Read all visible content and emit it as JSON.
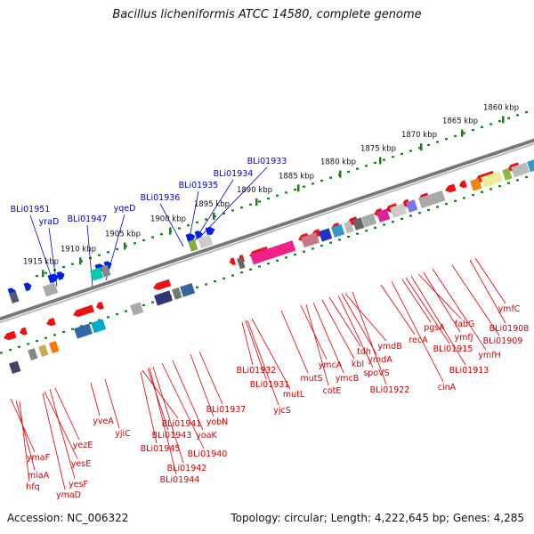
{
  "title": "Bacillus licheniformis ATCC 14580, complete genome",
  "footer": {
    "accession": "Accession: NC_006322",
    "stats": "Topology: circular; Length: 4,222,645 bp; Genes: 4,285"
  },
  "ticks": [
    "1860 kbp",
    "1865 kbp",
    "1870 kbp",
    "1875 kbp",
    "1880 kbp",
    "1885 kbp",
    "1890 kbp",
    "1895 kbp",
    "1900 kbp",
    "1905 kbp",
    "1910 kbp",
    "1915 kbp"
  ],
  "genes_top": [
    "BLi01951",
    "yraD",
    "BLi01947",
    "yqeD",
    "BLi01936",
    "BLi01935",
    "BLi01934",
    "BLi01933"
  ],
  "genes_bottom": [
    "ymaF",
    "miaA",
    "hfq",
    "yesE",
    "yesF",
    "yezE",
    "ymaD",
    "yveA",
    "yjiC",
    "BLi01941",
    "BLi01943",
    "BLi01945",
    "BLi01942",
    "BLi01944",
    "BLi01940",
    "yoaK",
    "yobN",
    "BLi01937",
    "BLi01932",
    "BLi01931",
    "mutL",
    "yjcS",
    "mutS",
    "ymcA",
    "cotE",
    "ymcB",
    "kbl",
    "tdh",
    "spoVS",
    "ymdB",
    "ymdA",
    "BLi01922",
    "recA",
    "cinA",
    "pgsA",
    "BLi01915",
    "BLi01913",
    "fabG",
    "ymfJ",
    "ymfH",
    "ymfC",
    "BLi01909",
    "BLi01908"
  ],
  "colors": {
    "forward_label": "#0000cc",
    "reverse_label": "#cc0000",
    "tick": "#1e7d1e",
    "backbone": "#777777"
  }
}
